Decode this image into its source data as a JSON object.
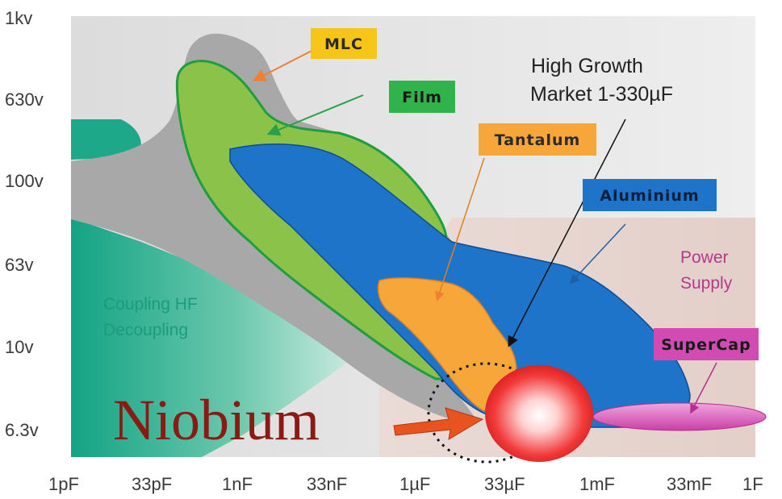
{
  "y_axis": {
    "ticks": [
      "1kv",
      "630v",
      "100v",
      "63v",
      "10v",
      "6.3v"
    ]
  },
  "x_axis": {
    "ticks": [
      "1pF",
      "33pF",
      "1nF",
      "33nF",
      "1µF",
      "33µF",
      "1mF",
      "33mF",
      "1F"
    ]
  },
  "tags": {
    "mlc": "MLC",
    "film": "Film",
    "tantalum": "Tantalum",
    "aluminium": "Aluminium",
    "supercap": "SuperCap"
  },
  "regions": {
    "coupling_line1": "Coupling HF",
    "coupling_line2": "Decoupling",
    "power_line1": "Power",
    "power_line2": "Supply"
  },
  "callout": {
    "line1": "High Growth",
    "line2": "Market 1-330µF"
  },
  "niobium": "Niobium",
  "colors": {
    "gray_region": "#a8a8a8",
    "film_green": "#8bc34a",
    "film_outline": "#1e9e3e",
    "aluminium_blue": "#1e74c8",
    "tantalum_orange": "#f7a63a",
    "coupling_teal": "#1aa88a",
    "supercap_magenta": "#d24bb2",
    "mlc_yellow": "#f5c518",
    "niobium_red": "#8b1a14"
  }
}
